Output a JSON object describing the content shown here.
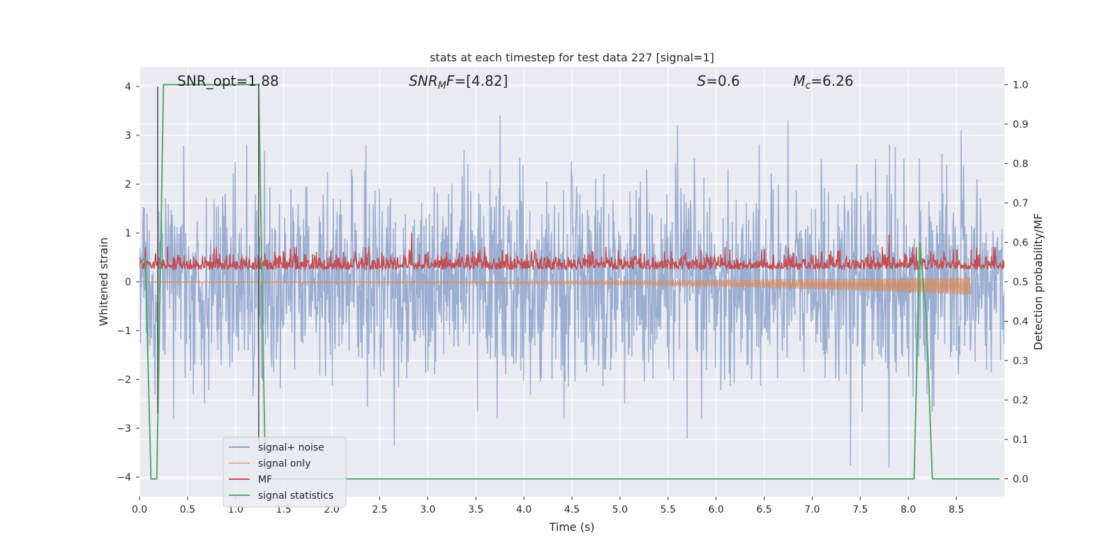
{
  "chart_data": {
    "type": "line",
    "title": "stats at each timestep for test data 227 [signal=1]",
    "xlabel": "Time (s)",
    "ylabel_left": "Whitened strain",
    "ylabel_right": "Detection probability/MF",
    "xlim": [
      0.0,
      9.0
    ],
    "ylim_left": [
      -4.4,
      4.4
    ],
    "ylim_right": [
      -0.045,
      1.045
    ],
    "x_ticks": [
      0.0,
      0.5,
      1.0,
      1.5,
      2.0,
      2.5,
      3.0,
      3.5,
      4.0,
      4.5,
      5.0,
      5.5,
      6.0,
      6.5,
      7.0,
      7.5,
      8.0,
      8.5
    ],
    "x_tick_labels": [
      "0.0",
      "0.5",
      "1.0",
      "1.5",
      "2.0",
      "2.5",
      "3.0",
      "3.5",
      "4.0",
      "4.5",
      "5.0",
      "5.5",
      "6.0",
      "6.5",
      "7.0",
      "7.5",
      "8.0",
      "8.5"
    ],
    "y_left_ticks": [
      -4,
      -3,
      -2,
      -1,
      0,
      1,
      2,
      3,
      4
    ],
    "y_left_tick_labels": [
      "−4",
      "−3",
      "−2",
      "−1",
      "0",
      "1",
      "2",
      "3",
      "4"
    ],
    "y_right_ticks": [
      0.0,
      0.1,
      0.2,
      0.3,
      0.4,
      0.5,
      0.6,
      0.7,
      0.8,
      0.9,
      1.0
    ],
    "y_right_tick_labels": [
      "0.0",
      "0.1",
      "0.2",
      "0.3",
      "0.4",
      "0.5",
      "0.6",
      "0.7",
      "0.8",
      "0.9",
      "1.0"
    ],
    "grid": true,
    "legend_position": "lower-left",
    "annotations": [
      {
        "id": "snr-opt",
        "x": 0.19,
        "html": "SNR_opt=1.88"
      },
      {
        "id": "snr-mf",
        "x": 2.6,
        "html": "<tspan font-style='italic'>SNR</tspan><tspan font-style='italic' font-size='14px' dy='4'>M</tspan><tspan font-style='italic' dy='-4'>F</tspan>=[4.82]"
      },
      {
        "id": "s-value",
        "x": 5.6,
        "html": "<tspan font-style='italic'>S</tspan>=0.6"
      },
      {
        "id": "mc-value",
        "x": 6.6,
        "html": "<tspan font-style='italic'>M</tspan><tspan font-style='italic' font-size='14px' dy='4'>c</tspan><tspan dy='-4'>=6.26</tspan>"
      }
    ],
    "vertical_markers": [
      {
        "x": 0.19,
        "y_from": -2.7,
        "y_to": 4.0,
        "color": "#555555"
      },
      {
        "x": 1.24,
        "y_from": -3.3,
        "y_to": 4.0,
        "color": "#555555"
      }
    ],
    "series": [
      {
        "name": "signal+ noise",
        "color": "#4c72b0",
        "opacity": 0.5,
        "axis": "left",
        "kind": "noise",
        "x_start": 0.0,
        "x_end": 9.0,
        "n_points": 1800,
        "typical_range": [
          -1.5,
          1.5
        ],
        "notable_peaks": [
          [
            3.75,
            3.4
          ],
          [
            5.6,
            3.2
          ],
          [
            6.75,
            3.3
          ],
          [
            7.4,
            4.0
          ],
          [
            8.55,
            3.1
          ],
          [
            2.65,
            -3.35
          ],
          [
            5.7,
            -3.2
          ],
          [
            7.4,
            -3.75
          ],
          [
            7.8,
            -3.8
          ]
        ]
      },
      {
        "name": "signal only",
        "color": "#dd8452",
        "opacity": 0.7,
        "axis": "left",
        "kind": "chirp",
        "x_start": 0.0,
        "x_end": 8.65,
        "amplitude_start": 0.01,
        "amplitude_end": 0.18
      },
      {
        "name": "MF",
        "color": "#c44e52",
        "opacity": 1.0,
        "axis": "left",
        "kind": "mf",
        "x_start": 0.0,
        "x_end": 9.0,
        "n_points": 1800,
        "baseline": 0.25,
        "typical_max": 0.7,
        "notable_peaks": [
          [
            2.83,
            1.0
          ],
          [
            7.8,
            0.95
          ]
        ]
      },
      {
        "name": "signal statistics",
        "color": "#55a868",
        "opacity": 1.0,
        "axis": "right",
        "kind": "step",
        "x": [
          0.0,
          0.06,
          0.12,
          0.18,
          0.25,
          1.24,
          1.31,
          1.36,
          8.06,
          8.12,
          8.19,
          8.25,
          8.95
        ],
        "values": [
          0.55,
          0.56,
          0.0,
          0.0,
          1.0,
          1.0,
          0.0,
          0.0,
          0.0,
          0.6,
          0.4,
          0.0,
          0.0
        ]
      }
    ]
  }
}
